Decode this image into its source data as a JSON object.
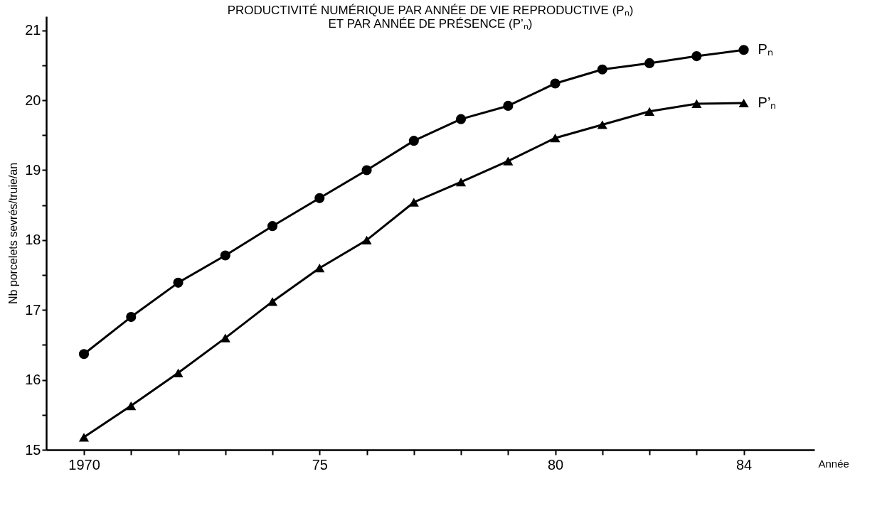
{
  "chart_data": {
    "type": "line",
    "title": "PRODUCTIVITÉ NUMÉRIQUE PAR ANNÉE DE VIE REPRODUCTIVE (Pₙ)",
    "subtitle": "ET PAR ANNÉE DE PRÉSENCE (P’ₙ)",
    "xlabel": "Année",
    "ylabel": "Nb porcelets sevrés/truie/an",
    "x": [
      1970,
      1971,
      1972,
      1973,
      1974,
      1975,
      1976,
      1977,
      1978,
      1979,
      1980,
      1981,
      1982,
      1983,
      1984
    ],
    "series": [
      {
        "name": "Pₙ",
        "color": "#000000",
        "marker": "circle",
        "values": [
          16.37,
          16.9,
          17.39,
          17.78,
          18.2,
          18.6,
          19.0,
          19.42,
          19.73,
          19.92,
          20.24,
          20.44,
          20.53,
          20.63,
          20.72
        ]
      },
      {
        "name": "P’ₙ",
        "color": "#000000",
        "marker": "triangle",
        "values": [
          15.18,
          15.63,
          16.1,
          16.6,
          17.12,
          17.6,
          18.0,
          18.54,
          18.83,
          19.13,
          19.46,
          19.65,
          19.84,
          19.95,
          19.96
        ]
      }
    ],
    "xlim": [
      1969.2,
      1985.5
    ],
    "xticks": [
      1970,
      {
        "value": 1971,
        "label": null
      },
      {
        "value": 1972,
        "label": null
      },
      {
        "value": 1973,
        "label": null
      },
      {
        "value": 1974,
        "label": null
      },
      {
        "value": 1975,
        "label": "75"
      },
      {
        "value": 1976,
        "label": null
      },
      {
        "value": 1977,
        "label": null
      },
      {
        "value": 1978,
        "label": null
      },
      {
        "value": 1979,
        "label": null
      },
      {
        "value": 1980,
        "label": "80"
      },
      {
        "value": 1981,
        "label": null
      },
      {
        "value": 1982,
        "label": null
      },
      {
        "value": 1983,
        "label": null
      },
      {
        "value": 1984,
        "label": "84"
      }
    ],
    "ylim": [
      15,
      21.2
    ],
    "yticks": [
      15,
      {
        "value": 15.5,
        "label": null
      },
      16,
      {
        "value": 16.5,
        "label": null
      },
      17,
      {
        "value": 17.5,
        "label": null
      },
      18,
      {
        "value": 18.5,
        "label": null
      },
      19,
      {
        "value": 19.5,
        "label": null
      },
      20,
      {
        "value": 20.5,
        "label": null
      },
      21
    ],
    "grid": false,
    "legend": false,
    "line_style": "solid"
  }
}
